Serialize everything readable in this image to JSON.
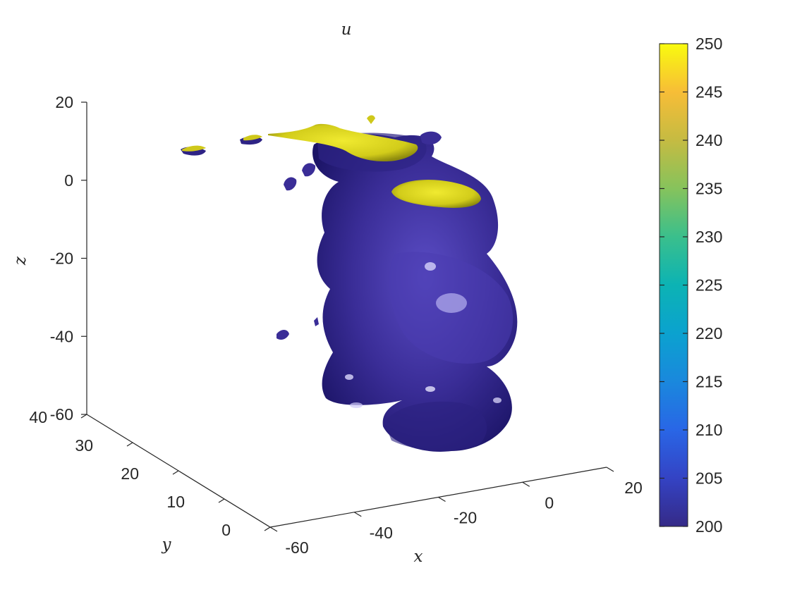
{
  "chart_data": {
    "type": "isosurface-3d",
    "title": "u",
    "xlabel": "x",
    "ylabel": "y",
    "zlabel": "z",
    "xlim": [
      -60,
      20
    ],
    "ylim": [
      0,
      40
    ],
    "zlim": [
      -60,
      20
    ],
    "x_ticks": [
      "-60",
      "-40",
      "-20",
      "0",
      "20"
    ],
    "y_ticks": [
      "0",
      "10",
      "20",
      "30",
      "40"
    ],
    "z_ticks": [
      "-60",
      "-40",
      "-20",
      "0",
      "20"
    ],
    "isovalues": [
      200,
      250
    ],
    "isovalue_colors": [
      "#3a2d97",
      "#d8d21c"
    ],
    "colorbar": {
      "limits": [
        200,
        250
      ],
      "ticks": [
        "200",
        "205",
        "210",
        "215",
        "220",
        "225",
        "230",
        "235",
        "240",
        "245",
        "250"
      ],
      "colormap": "parula"
    },
    "grid": false
  }
}
